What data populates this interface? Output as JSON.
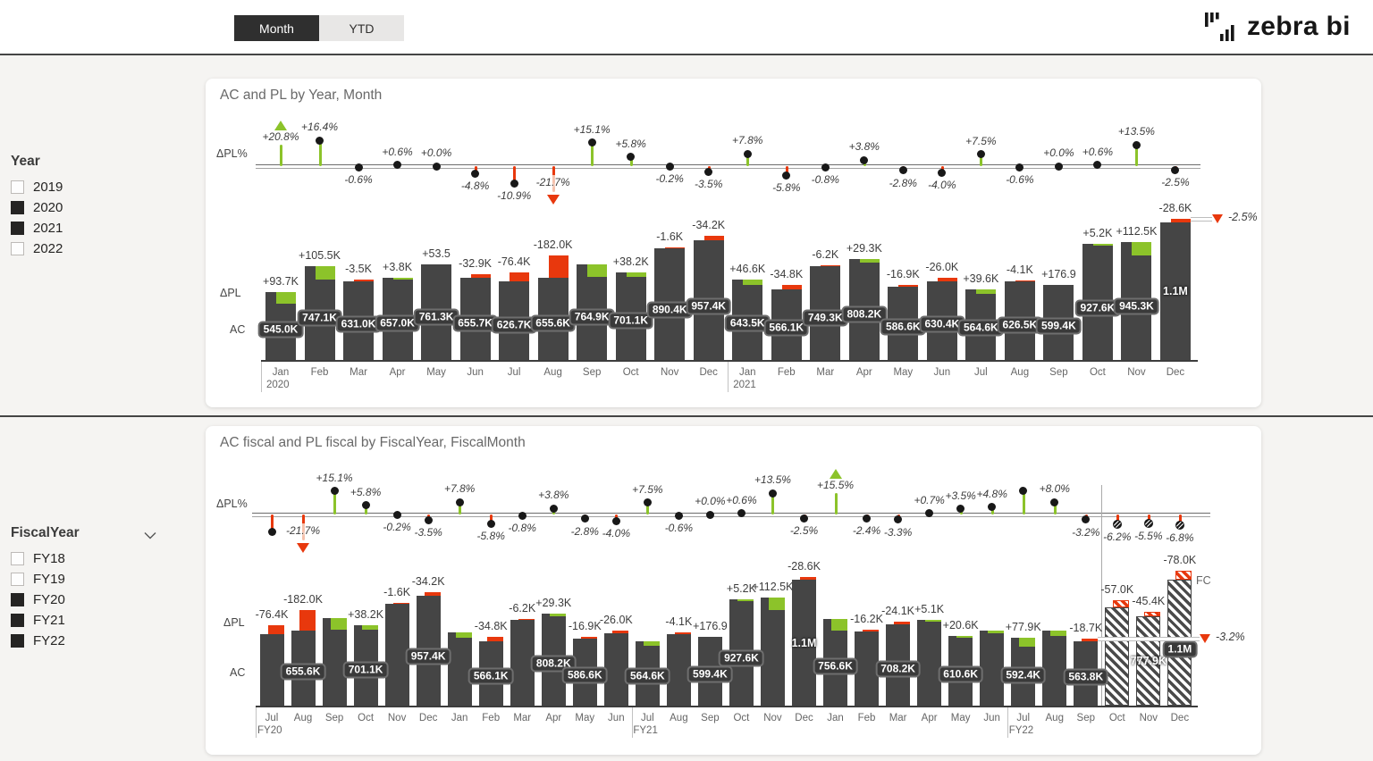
{
  "page": {
    "brand": "zebra bi"
  },
  "toolbar": {
    "month_label": "Month",
    "ytd_label": "YTD"
  },
  "filters": {
    "year": {
      "title": "Year",
      "items": [
        {
          "label": "2019",
          "checked": false
        },
        {
          "label": "2020",
          "checked": true
        },
        {
          "label": "2021",
          "checked": true
        },
        {
          "label": "2022",
          "checked": false
        }
      ]
    },
    "fiscal_year": {
      "title": "FiscalYear",
      "items": [
        {
          "label": "FY18",
          "checked": false
        },
        {
          "label": "FY19",
          "checked": false
        },
        {
          "label": "FY20",
          "checked": true
        },
        {
          "label": "FY21",
          "checked": true
        },
        {
          "label": "FY22",
          "checked": true
        }
      ]
    }
  },
  "colors": {
    "bar": "#454545",
    "positive": "#8CC32A",
    "negative": "#E8380D",
    "negative_pale": "#F5C0AB",
    "axis_text": "#666666",
    "label_text": "#3d3d3d"
  },
  "chart_data": [
    {
      "type": "bar",
      "title": "AC and PL by Year, Month",
      "row_labels": {
        "pct": "ΔPL%",
        "variance": "ΔPL",
        "actual": "AC"
      },
      "unit": "K",
      "total_marker": {
        "label": "-2.5%"
      },
      "points": [
        {
          "m": "Jan",
          "g": "2020",
          "ac": 545.0,
          "acL": "545.0K",
          "v": 93.7,
          "vL": "+93.7K",
          "p": 20.8,
          "pL": "+20.8%",
          "clip": "up"
        },
        {
          "m": "Feb",
          "ac": 747.1,
          "acL": "747.1K",
          "v": 105.5,
          "vL": "+105.5K",
          "p": 16.4,
          "pL": "+16.4%"
        },
        {
          "m": "Mar",
          "ac": 631.0,
          "acL": "631.0K",
          "v": -3.5,
          "vL": "-3.5K",
          "p": -0.6,
          "pL": "-0.6%"
        },
        {
          "m": "Apr",
          "ac": 657.0,
          "acL": "657.0K",
          "v": 3.8,
          "vL": "+3.8K",
          "p": 0.6,
          "pL": "+0.6%"
        },
        {
          "m": "May",
          "ac": 761.3,
          "acL": "761.3K",
          "v": 0.0535,
          "vL": "+53.5",
          "p": 0.0,
          "pL": "+0.0%"
        },
        {
          "m": "Jun",
          "ac": 655.7,
          "acL": "655.7K",
          "v": -32.9,
          "vL": "-32.9K",
          "p": -4.8,
          "pL": "-4.8%"
        },
        {
          "m": "Jul",
          "ac": 626.7,
          "acL": "626.7K",
          "v": -76.4,
          "vL": "-76.4K",
          "p": -10.9,
          "pL": "-10.9%"
        },
        {
          "m": "Aug",
          "ac": 655.6,
          "acL": "655.6K",
          "v": -182.0,
          "vL": "-182.0K",
          "p": -21.7,
          "pL": "-21.7%",
          "clip": "down"
        },
        {
          "m": "Sep",
          "ac": 764.9,
          "acL": "764.9K",
          "v": 100.3,
          "vL": null,
          "p": 15.1,
          "pL": "+15.1%"
        },
        {
          "m": "Oct",
          "ac": 701.1,
          "acL": "701.1K",
          "v": 38.2,
          "vL": "+38.2K",
          "p": 5.8,
          "pL": "+5.8%"
        },
        {
          "m": "Nov",
          "ac": 890.4,
          "acL": "890.4K",
          "v": -1.6,
          "vL": "-1.6K",
          "p": -0.2,
          "pL": "-0.2%"
        },
        {
          "m": "Dec",
          "ac": 957.4,
          "acL": "957.4K",
          "v": -34.2,
          "vL": "-34.2K",
          "p": -3.5,
          "pL": "-3.5%"
        },
        {
          "m": "Jan",
          "g": "2021",
          "ac": 643.5,
          "acL": "643.5K",
          "v": 46.6,
          "vL": "+46.6K",
          "p": 7.8,
          "pL": "+7.8%"
        },
        {
          "m": "Feb",
          "ac": 566.1,
          "acL": "566.1K",
          "v": -34.8,
          "vL": "-34.8K",
          "p": -5.8,
          "pL": "-5.8%"
        },
        {
          "m": "Mar",
          "ac": 749.3,
          "acL": "749.3K",
          "v": -6.2,
          "vL": "-6.2K",
          "p": -0.8,
          "pL": "-0.8%"
        },
        {
          "m": "Apr",
          "ac": 808.2,
          "acL": "808.2K",
          "v": 29.3,
          "vL": "+29.3K",
          "p": 3.8,
          "pL": "+3.8%"
        },
        {
          "m": "May",
          "ac": 586.6,
          "acL": "586.6K",
          "v": -16.9,
          "vL": "-16.9K",
          "p": -2.8,
          "pL": "-2.8%"
        },
        {
          "m": "Jun",
          "ac": 630.4,
          "acL": "630.4K",
          "v": -26.0,
          "vL": "-26.0K",
          "p": -4.0,
          "pL": "-4.0%"
        },
        {
          "m": "Jul",
          "ac": 564.6,
          "acL": "564.6K",
          "v": 39.6,
          "vL": "+39.6K",
          "p": 7.5,
          "pL": "+7.5%"
        },
        {
          "m": "Aug",
          "ac": 626.5,
          "acL": "626.5K",
          "v": -4.1,
          "vL": "-4.1K",
          "p": -0.6,
          "pL": "-0.6%"
        },
        {
          "m": "Sep",
          "ac": 599.4,
          "acL": "599.4K",
          "v": 0.1769,
          "vL": "+176.9",
          "p": 0.0,
          "pL": "+0.0%"
        },
        {
          "m": "Oct",
          "ac": 927.6,
          "acL": "927.6K",
          "v": 5.2,
          "vL": "+5.2K",
          "p": 0.6,
          "pL": "+0.6%"
        },
        {
          "m": "Nov",
          "ac": 945.3,
          "acL": "945.3K",
          "v": 112.5,
          "vL": "+112.5K",
          "p": 13.5,
          "pL": "+13.5%"
        },
        {
          "m": "Dec",
          "ac": 1100,
          "acL": "1.1M",
          "plain": true,
          "v": -28.6,
          "vL": "-28.6K",
          "p": -2.5,
          "pL": "-2.5%"
        }
      ]
    },
    {
      "type": "bar",
      "title": "AC fiscal and PL fiscal by FiscalYear, FiscalMonth",
      "row_labels": {
        "pct": "ΔPL%",
        "variance": "ΔPL",
        "actual": "AC"
      },
      "unit": "K",
      "total_marker": {
        "label": "-3.2%"
      },
      "forecast_label": "FC",
      "points": [
        {
          "m": "Jul",
          "g": "FY20",
          "ac": 626.7,
          "acL": null,
          "v": -76.4,
          "vL": "-76.4K",
          "p": -10.9,
          "pL": null
        },
        {
          "m": "Aug",
          "ac": 655.6,
          "acL": "655.6K",
          "v": -182.0,
          "vL": "-182.0K",
          "p": -21.7,
          "pL": "-21.7%",
          "clip": "down"
        },
        {
          "m": "Sep",
          "ac": 764.9,
          "acL": null,
          "v": 100.3,
          "vL": null,
          "p": 15.1,
          "pL": "+15.1%"
        },
        {
          "m": "Oct",
          "ac": 701.1,
          "acL": "701.1K",
          "v": 38.2,
          "vL": "+38.2K",
          "p": 5.8,
          "pL": "+5.8%"
        },
        {
          "m": "Nov",
          "ac": 890.4,
          "acL": null,
          "v": -1.6,
          "vL": "-1.6K",
          "p": -0.2,
          "pL": "-0.2%"
        },
        {
          "m": "Dec",
          "ac": 957.4,
          "acL": "957.4K",
          "v": -34.2,
          "vL": "-34.2K",
          "p": -3.5,
          "pL": "-3.5%"
        },
        {
          "m": "Jan",
          "ac": 643.5,
          "acL": null,
          "v": 46.6,
          "vL": null,
          "p": 7.8,
          "pL": "+7.8%"
        },
        {
          "m": "Feb",
          "ac": 566.1,
          "acL": "566.1K",
          "v": -34.8,
          "vL": "-34.8K",
          "p": -5.8,
          "pL": "-5.8%"
        },
        {
          "m": "Mar",
          "ac": 749.3,
          "acL": null,
          "v": -6.2,
          "vL": "-6.2K",
          "p": -0.8,
          "pL": "-0.8%"
        },
        {
          "m": "Apr",
          "ac": 808.2,
          "acL": "808.2K",
          "v": 29.3,
          "vL": "+29.3K",
          "p": 3.8,
          "pL": "+3.8%"
        },
        {
          "m": "May",
          "ac": 586.6,
          "acL": "586.6K",
          "v": -16.9,
          "vL": "-16.9K",
          "p": -2.8,
          "pL": "-2.8%"
        },
        {
          "m": "Jun",
          "ac": 630.4,
          "acL": null,
          "v": -26.0,
          "vL": "-26.0K",
          "p": -4.0,
          "pL": "-4.0%"
        },
        {
          "m": "Jul",
          "g": "FY21",
          "ac": 564.6,
          "acL": "564.6K",
          "v": 39.6,
          "vL": null,
          "p": 7.5,
          "pL": "+7.5%"
        },
        {
          "m": "Aug",
          "ac": 626.5,
          "acL": null,
          "v": -4.1,
          "vL": "-4.1K",
          "p": -0.6,
          "pL": "-0.6%"
        },
        {
          "m": "Sep",
          "ac": 599.4,
          "acL": "599.4K",
          "v": 0.1769,
          "vL": "+176.9",
          "p": 0.0,
          "pL": "+0.0%"
        },
        {
          "m": "Oct",
          "ac": 927.6,
          "acL": "927.6K",
          "v": 5.2,
          "vL": "+5.2K",
          "p": 0.6,
          "pL": "+0.6%"
        },
        {
          "m": "Nov",
          "ac": 945.3,
          "acL": null,
          "v": 112.5,
          "vL": "+112.5K",
          "p": 13.5,
          "pL": "+13.5%"
        },
        {
          "m": "Dec",
          "ac": 1100,
          "acL": "1.1M",
          "plain": true,
          "v": -28.6,
          "vL": "-28.6K",
          "p": -2.5,
          "pL": "-2.5%"
        },
        {
          "m": "Jan",
          "ac": 756.6,
          "acL": "756.6K",
          "v": 101.5,
          "vL": null,
          "p": 15.5,
          "pL": "+15.5%",
          "clip": "up"
        },
        {
          "m": "Feb",
          "ac": 650.0,
          "acL": null,
          "v": -16.2,
          "vL": "-16.2K",
          "p": -2.4,
          "pL": "-2.4%"
        },
        {
          "m": "Mar",
          "ac": 708.2,
          "acL": "708.2K",
          "v": -24.1,
          "vL": "-24.1K",
          "p": -3.3,
          "pL": "-3.3%"
        },
        {
          "m": "Apr",
          "ac": 750.0,
          "acL": null,
          "v": 5.1,
          "vL": "+5.1K",
          "p": 0.7,
          "pL": "+0.7%"
        },
        {
          "m": "May",
          "ac": 610.6,
          "acL": "610.6K",
          "v": 20.6,
          "vL": "+20.6K",
          "p": 3.5,
          "pL": "+3.5%"
        },
        {
          "m": "Jun",
          "ac": 660.0,
          "acL": null,
          "v": 30.0,
          "vL": null,
          "p": 4.8,
          "pL": "+4.8%"
        },
        {
          "m": "Jul",
          "g": "FY22",
          "ac": 592.4,
          "acL": "592.4K",
          "v": 77.9,
          "vL": "+77.9K",
          "p": 15.1,
          "pL": null
        },
        {
          "m": "Aug",
          "ac": 655.0,
          "acL": null,
          "v": 48.5,
          "vL": null,
          "p": 8.0,
          "pL": "+8.0%"
        },
        {
          "m": "Sep",
          "ac": 563.8,
          "acL": "563.8K",
          "v": -18.7,
          "vL": "-18.7K",
          "p": -3.2,
          "pL": "-3.2%"
        },
        {
          "m": "Oct",
          "ac": 862.0,
          "acL": null,
          "v": -57.0,
          "vL": "-57.0K",
          "p": -6.2,
          "pL": "-6.2%",
          "fc": true
        },
        {
          "m": "Nov",
          "ac": 777.9,
          "acL": "777.9K",
          "plain": true,
          "v": -45.4,
          "vL": "-45.4K",
          "p": -5.5,
          "pL": "-5.5%",
          "fc": true
        },
        {
          "m": "Dec",
          "ac": 1100,
          "acL": "1.1M",
          "v": -78.0,
          "vL": "-78.0K",
          "p": -6.8,
          "pL": "-6.8%",
          "fc": true
        }
      ]
    }
  ]
}
